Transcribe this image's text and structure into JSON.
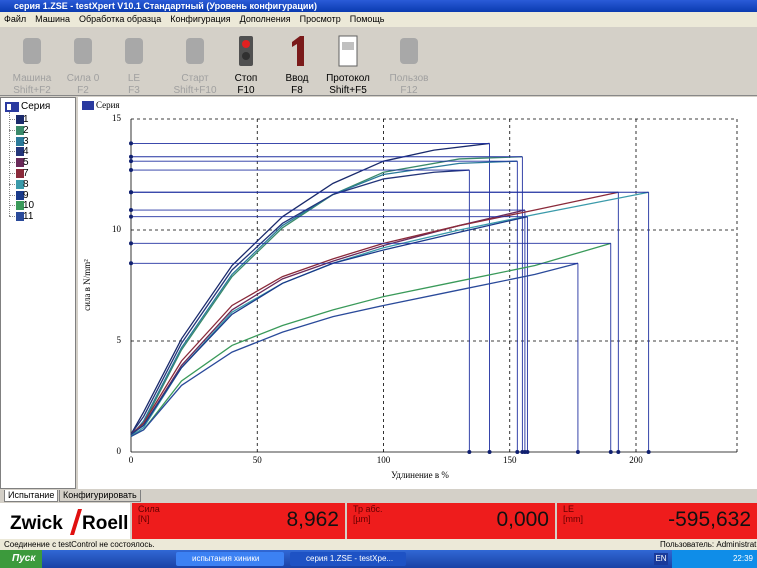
{
  "window": {
    "title": "серия 1.ZSE - testXpert V10.1 Стандартный (Уровень конфигурации)"
  },
  "menu": [
    "Файл",
    "Машина",
    "Обработка образца",
    "Конфигурация",
    "Дополнения",
    "Просмотр",
    "Помощь"
  ],
  "toolbar": [
    {
      "label": "Машина",
      "key": "Shift+F2",
      "enabled": false
    },
    {
      "label": "Сила 0",
      "key": "F2",
      "enabled": false
    },
    {
      "label": "LE",
      "key": "F3",
      "enabled": false
    },
    {
      "label": "Старт",
      "key": "Shift+F10",
      "enabled": false
    },
    {
      "label": "Стоп",
      "key": "F10",
      "enabled": true
    },
    {
      "label": "Ввод",
      "key": "F8",
      "enabled": true
    },
    {
      "label": "Протокол",
      "key": "Shift+F5",
      "enabled": true
    },
    {
      "label": "Пользов",
      "key": "F12",
      "enabled": false
    }
  ],
  "tree": {
    "root": "Серия"
  },
  "chart_data": {
    "type": "line",
    "title": "Серия",
    "x_label": "Удлинение в %",
    "y_label": "сила в N/mm²",
    "xlim": [
      0,
      240
    ],
    "ylim": [
      0,
      15
    ],
    "xticks": [
      0,
      50,
      100,
      150,
      200
    ],
    "yticks": [
      0,
      5,
      10,
      15
    ],
    "grid": true,
    "series": [
      {
        "name": "1",
        "color": "#1a2a6c",
        "x": [
          0,
          5,
          20,
          40,
          60,
          80,
          100,
          120,
          142
        ],
        "values": [
          0.8,
          1.8,
          5.1,
          8.4,
          10.6,
          12.1,
          13.1,
          13.6,
          13.9
        ]
      },
      {
        "name": "2",
        "color": "#3a8a6a",
        "x": [
          0,
          5,
          20,
          40,
          60,
          80,
          100,
          130,
          155
        ],
        "values": [
          0.7,
          1.3,
          4.6,
          7.9,
          10.1,
          11.6,
          12.6,
          13.2,
          13.3
        ]
      },
      {
        "name": "3",
        "color": "#2a7a9a",
        "x": [
          0,
          5,
          20,
          40,
          60,
          80,
          100,
          130,
          153
        ],
        "values": [
          0.7,
          1.4,
          4.7,
          8.0,
          10.2,
          11.6,
          12.5,
          13.0,
          13.1
        ]
      },
      {
        "name": "4",
        "color": "#23357a",
        "x": [
          0,
          5,
          20,
          40,
          60,
          80,
          100,
          120,
          134
        ],
        "values": [
          0.8,
          1.6,
          4.9,
          8.2,
          10.3,
          11.6,
          12.3,
          12.6,
          12.7
        ]
      },
      {
        "name": "5",
        "color": "#6a2a5a",
        "x": [
          0,
          5,
          20,
          40,
          60,
          80,
          100,
          130,
          156
        ],
        "values": [
          0.8,
          1.2,
          3.9,
          6.4,
          7.8,
          8.6,
          9.3,
          10.2,
          10.9
        ]
      },
      {
        "name": "7",
        "color": "#8a2a3a",
        "x": [
          0,
          5,
          20,
          40,
          60,
          80,
          100,
          130,
          160,
          193
        ],
        "values": [
          0.8,
          1.3,
          4.1,
          6.6,
          7.9,
          8.7,
          9.4,
          10.2,
          10.9,
          11.7
        ]
      },
      {
        "name": "8",
        "color": "#3a9aaa",
        "x": [
          0,
          5,
          20,
          40,
          60,
          80,
          100,
          130,
          160,
          205
        ],
        "values": [
          0.7,
          1.1,
          3.8,
          6.3,
          7.6,
          8.5,
          9.2,
          10.0,
          10.7,
          11.7
        ]
      },
      {
        "name": "9",
        "color": "#1a3a8a",
        "x": [
          0,
          5,
          20,
          40,
          60,
          80,
          100,
          130,
          157
        ],
        "values": [
          0.8,
          1.2,
          3.8,
          6.2,
          7.6,
          8.5,
          9.1,
          9.9,
          10.6
        ]
      },
      {
        "name": "10",
        "color": "#3a9a5a",
        "x": [
          0,
          5,
          20,
          40,
          60,
          80,
          100,
          130,
          160,
          190
        ],
        "values": [
          0.7,
          1.0,
          3.2,
          4.8,
          5.7,
          6.4,
          7.0,
          7.7,
          8.4,
          9.4
        ]
      },
      {
        "name": "11",
        "color": "#2a4a9a",
        "x": [
          0,
          5,
          20,
          40,
          60,
          80,
          100,
          130,
          160,
          177
        ],
        "values": [
          0.7,
          1.0,
          3.0,
          4.5,
          5.4,
          6.1,
          6.6,
          7.3,
          8.0,
          8.5
        ]
      }
    ]
  },
  "tabs": [
    "Испытание",
    "Конфигурировать"
  ],
  "brand": {
    "left": "Zwick",
    "right": "Roell"
  },
  "readouts": [
    {
      "name": "Сила",
      "unit": "[N]",
      "value": "8,962"
    },
    {
      "name": "Тр абс.",
      "unit": "[µm]",
      "value": "0,000"
    },
    {
      "name": "LE",
      "unit": "[mm]",
      "value": "-595,632"
    }
  ],
  "status": {
    "message": "Соединение с testControl не состоялось.",
    "user": "Пользователь: Administrat"
  },
  "taskbar": {
    "start": "Пуск",
    "items": [
      "испытания хиники",
      "серия 1.ZSE - testXpe..."
    ],
    "lang": "EN",
    "clock": "22:39"
  }
}
